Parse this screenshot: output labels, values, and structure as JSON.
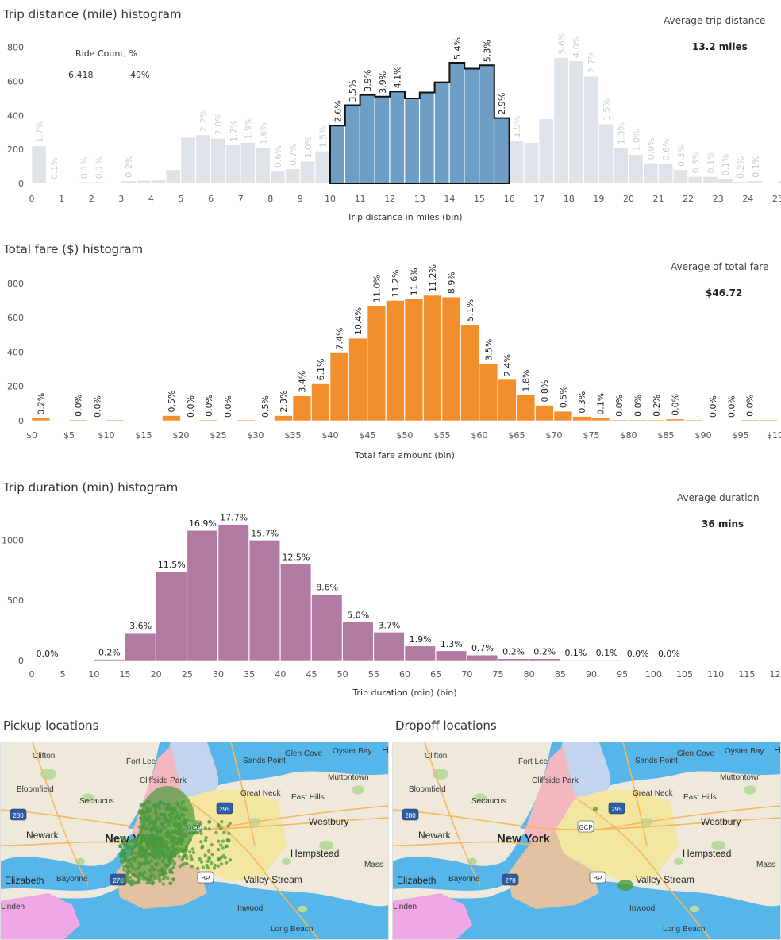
{
  "distance": {
    "title": "Trip distance (mile) histogram",
    "kpi_label": "Average trip distance",
    "kpi_value": "13.2 miles",
    "selection_header": "Ride Count, %",
    "selection_count": "6,418",
    "selection_pct": "49%"
  },
  "fare": {
    "title": "Total fare ($) histogram",
    "kpi_label": "Average of total fare",
    "kpi_value": "$46.72"
  },
  "duration": {
    "title": "Trip duration (min) histogram",
    "kpi_label": "Average duration",
    "kpi_value": "36 mins"
  },
  "maps": {
    "pickup_title": "Pickup locations",
    "dropoff_title": "Dropoff locations",
    "labels": [
      "Clifton",
      "Fort Lee",
      "Glen Cove",
      "Oyster Bay",
      "Sands Point",
      "Muttontown",
      "Bloomfield",
      "Cliffside Park",
      "Secaucus",
      "Great Neck",
      "East Hills",
      "Westbury",
      "Newark",
      "New York",
      "Hempstead",
      "Elizabeth",
      "Bayonne",
      "Valley Stream",
      "Inwood",
      "Long Beach",
      "Linden",
      "Mass",
      "H"
    ],
    "shields": [
      "280",
      "295",
      "GCP",
      "278",
      "BP"
    ]
  },
  "chart_data": [
    {
      "type": "bar",
      "title": "Trip distance (mile) histogram",
      "xlabel": "Trip distance in miles  (bin)",
      "ylabel": "",
      "ylim": [
        0,
        850
      ],
      "yticks": [
        "0",
        "200",
        "400",
        "600",
        "800"
      ],
      "xticks": [
        "0",
        "1",
        "2",
        "3",
        "4",
        "5",
        "6",
        "7",
        "8",
        "9",
        "10",
        "11",
        "12",
        "13",
        "14",
        "15",
        "16",
        "17",
        "18",
        "19",
        "20",
        "21",
        "22",
        "23",
        "24",
        "25"
      ],
      "bin_width": 0.5,
      "x": [
        0,
        0.5,
        1,
        1.5,
        2,
        2.5,
        3,
        3.5,
        4,
        4.5,
        5,
        5.5,
        6,
        6.5,
        7,
        7.5,
        8,
        8.5,
        9,
        9.5,
        10,
        10.5,
        11,
        11.5,
        12,
        12.5,
        13,
        13.5,
        14,
        14.5,
        15,
        15.5,
        16,
        16.5,
        17,
        17.5,
        18,
        18.5,
        19,
        19.5,
        20,
        20.5,
        21,
        21.5,
        22,
        22.5,
        23,
        23.5,
        24,
        24.5,
        25
      ],
      "values": [
        220,
        5,
        0,
        8,
        8,
        5,
        15,
        18,
        20,
        80,
        270,
        285,
        265,
        225,
        240,
        210,
        75,
        85,
        130,
        190,
        340,
        460,
        520,
        510,
        540,
        500,
        535,
        595,
        710,
        675,
        695,
        385,
        250,
        240,
        380,
        740,
        720,
        630,
        350,
        210,
        170,
        120,
        115,
        80,
        40,
        40,
        25,
        10,
        15,
        5,
        15
      ],
      "labels": [
        "1.7%",
        "0.1%",
        "",
        "0.1%",
        "0.1%",
        "",
        "0.2%",
        "",
        "",
        "",
        "",
        "2.2%",
        "2.0%",
        "1.7%",
        "1.9%",
        "1.6%",
        "0.6%",
        "0.7%",
        "1.0%",
        "1.5%",
        "2.6%",
        "3.5%",
        "3.9%",
        "3.9%",
        "4.1%",
        "",
        "",
        "",
        "5.4%",
        "",
        "5.3%",
        "2.9%",
        "1.9%",
        "",
        "",
        "5.6%",
        "4.0%",
        "2.7%",
        "1.5%",
        "1.3%",
        "1.0%",
        "0.9%",
        "0.6%",
        "0.3%",
        "0.3%",
        "0.1%",
        "0.1%",
        "0.2%",
        "0.1%",
        "",
        ""
      ],
      "selected_range": [
        10,
        16
      ],
      "colors": {
        "selected": "#6f9ec5",
        "unselected": "#dde3e9"
      }
    },
    {
      "type": "bar",
      "title": "Total fare ($) histogram",
      "xlabel": "Total fare amount (bin)",
      "ylabel": "",
      "ylim": [
        0,
        850
      ],
      "yticks": [
        "0",
        "200",
        "400",
        "600",
        "800"
      ],
      "xticks": [
        "$0",
        "$5",
        "$10",
        "$15",
        "$20",
        "$25",
        "$30",
        "$35",
        "$40",
        "$45",
        "$50",
        "$55",
        "$60",
        "$65",
        "$70",
        "$75",
        "$80",
        "$85",
        "$90",
        "$95",
        "$100"
      ],
      "bin_width": 2.5,
      "x": [
        0,
        2.5,
        5,
        7.5,
        10,
        12.5,
        15,
        17.5,
        20,
        22.5,
        25,
        27.5,
        30,
        32.5,
        35,
        37.5,
        40,
        42.5,
        45,
        47.5,
        50,
        52.5,
        55,
        57.5,
        60,
        62.5,
        65,
        67.5,
        70,
        72.5,
        75,
        77.5,
        80,
        82.5,
        85,
        87.5,
        90,
        92.5,
        95,
        97.5
      ],
      "values": [
        15,
        0,
        5,
        0,
        5,
        0,
        0,
        30,
        0,
        5,
        0,
        5,
        0,
        30,
        145,
        215,
        395,
        480,
        670,
        700,
        710,
        730,
        720,
        560,
        330,
        240,
        150,
        90,
        55,
        25,
        15,
        5,
        5,
        5,
        10,
        5,
        0,
        0,
        5,
        5
      ],
      "labels": [
        "0.2%",
        "",
        "0.0%",
        "0.0%",
        "",
        "",
        "",
        "0.5%",
        "0.0%",
        "0.0%",
        "0.0%",
        "",
        "0.5%",
        "2.3%",
        "3.4%",
        "6.1%",
        "7.4%",
        "10.4%",
        "11.0%",
        "11.2%",
        "11.6%",
        "11.2%",
        "8.9%",
        "5.1%",
        "3.5%",
        "2.4%",
        "1.8%",
        "0.8%",
        "0.5%",
        "0.3%",
        "0.1%",
        "0.0%",
        "0.0%",
        "0.2%",
        "0.0%",
        "",
        "0.0%",
        "0.0%",
        "0.0%",
        ""
      ],
      "color": "#f28e2b"
    },
    {
      "type": "bar",
      "title": "Trip duration (min) histogram",
      "xlabel": "Trip duration (min) (bin)",
      "ylabel": "",
      "ylim": [
        0,
        1200
      ],
      "yticks": [
        "0",
        "500",
        "1000"
      ],
      "xticks": [
        "0",
        "5",
        "10",
        "15",
        "20",
        "25",
        "30",
        "35",
        "40",
        "45",
        "50",
        "55",
        "60",
        "65",
        "70",
        "75",
        "80",
        "85",
        "90",
        "95",
        "100",
        "105",
        "110",
        "115",
        "120"
      ],
      "bin_width": 5,
      "x": [
        0,
        5,
        10,
        15,
        20,
        25,
        30,
        35,
        40,
        45,
        50,
        55,
        60,
        65,
        70,
        75,
        80,
        85,
        90,
        95,
        100,
        105
      ],
      "values": [
        0,
        0,
        10,
        230,
        740,
        1080,
        1130,
        1000,
        800,
        550,
        320,
        235,
        120,
        80,
        45,
        15,
        15,
        5,
        5,
        0,
        0,
        0
      ],
      "labels": [
        "0.0%",
        "",
        "0.2%",
        "3.6%",
        "11.5%",
        "16.9%",
        "17.7%",
        "15.7%",
        "12.5%",
        "8.6%",
        "5.0%",
        "3.7%",
        "1.9%",
        "1.3%",
        "0.7%",
        "0.2%",
        "0.2%",
        "0.1%",
        "0.1%",
        "0.0%",
        "0.0%",
        ""
      ],
      "color": "#b07aa1"
    }
  ]
}
